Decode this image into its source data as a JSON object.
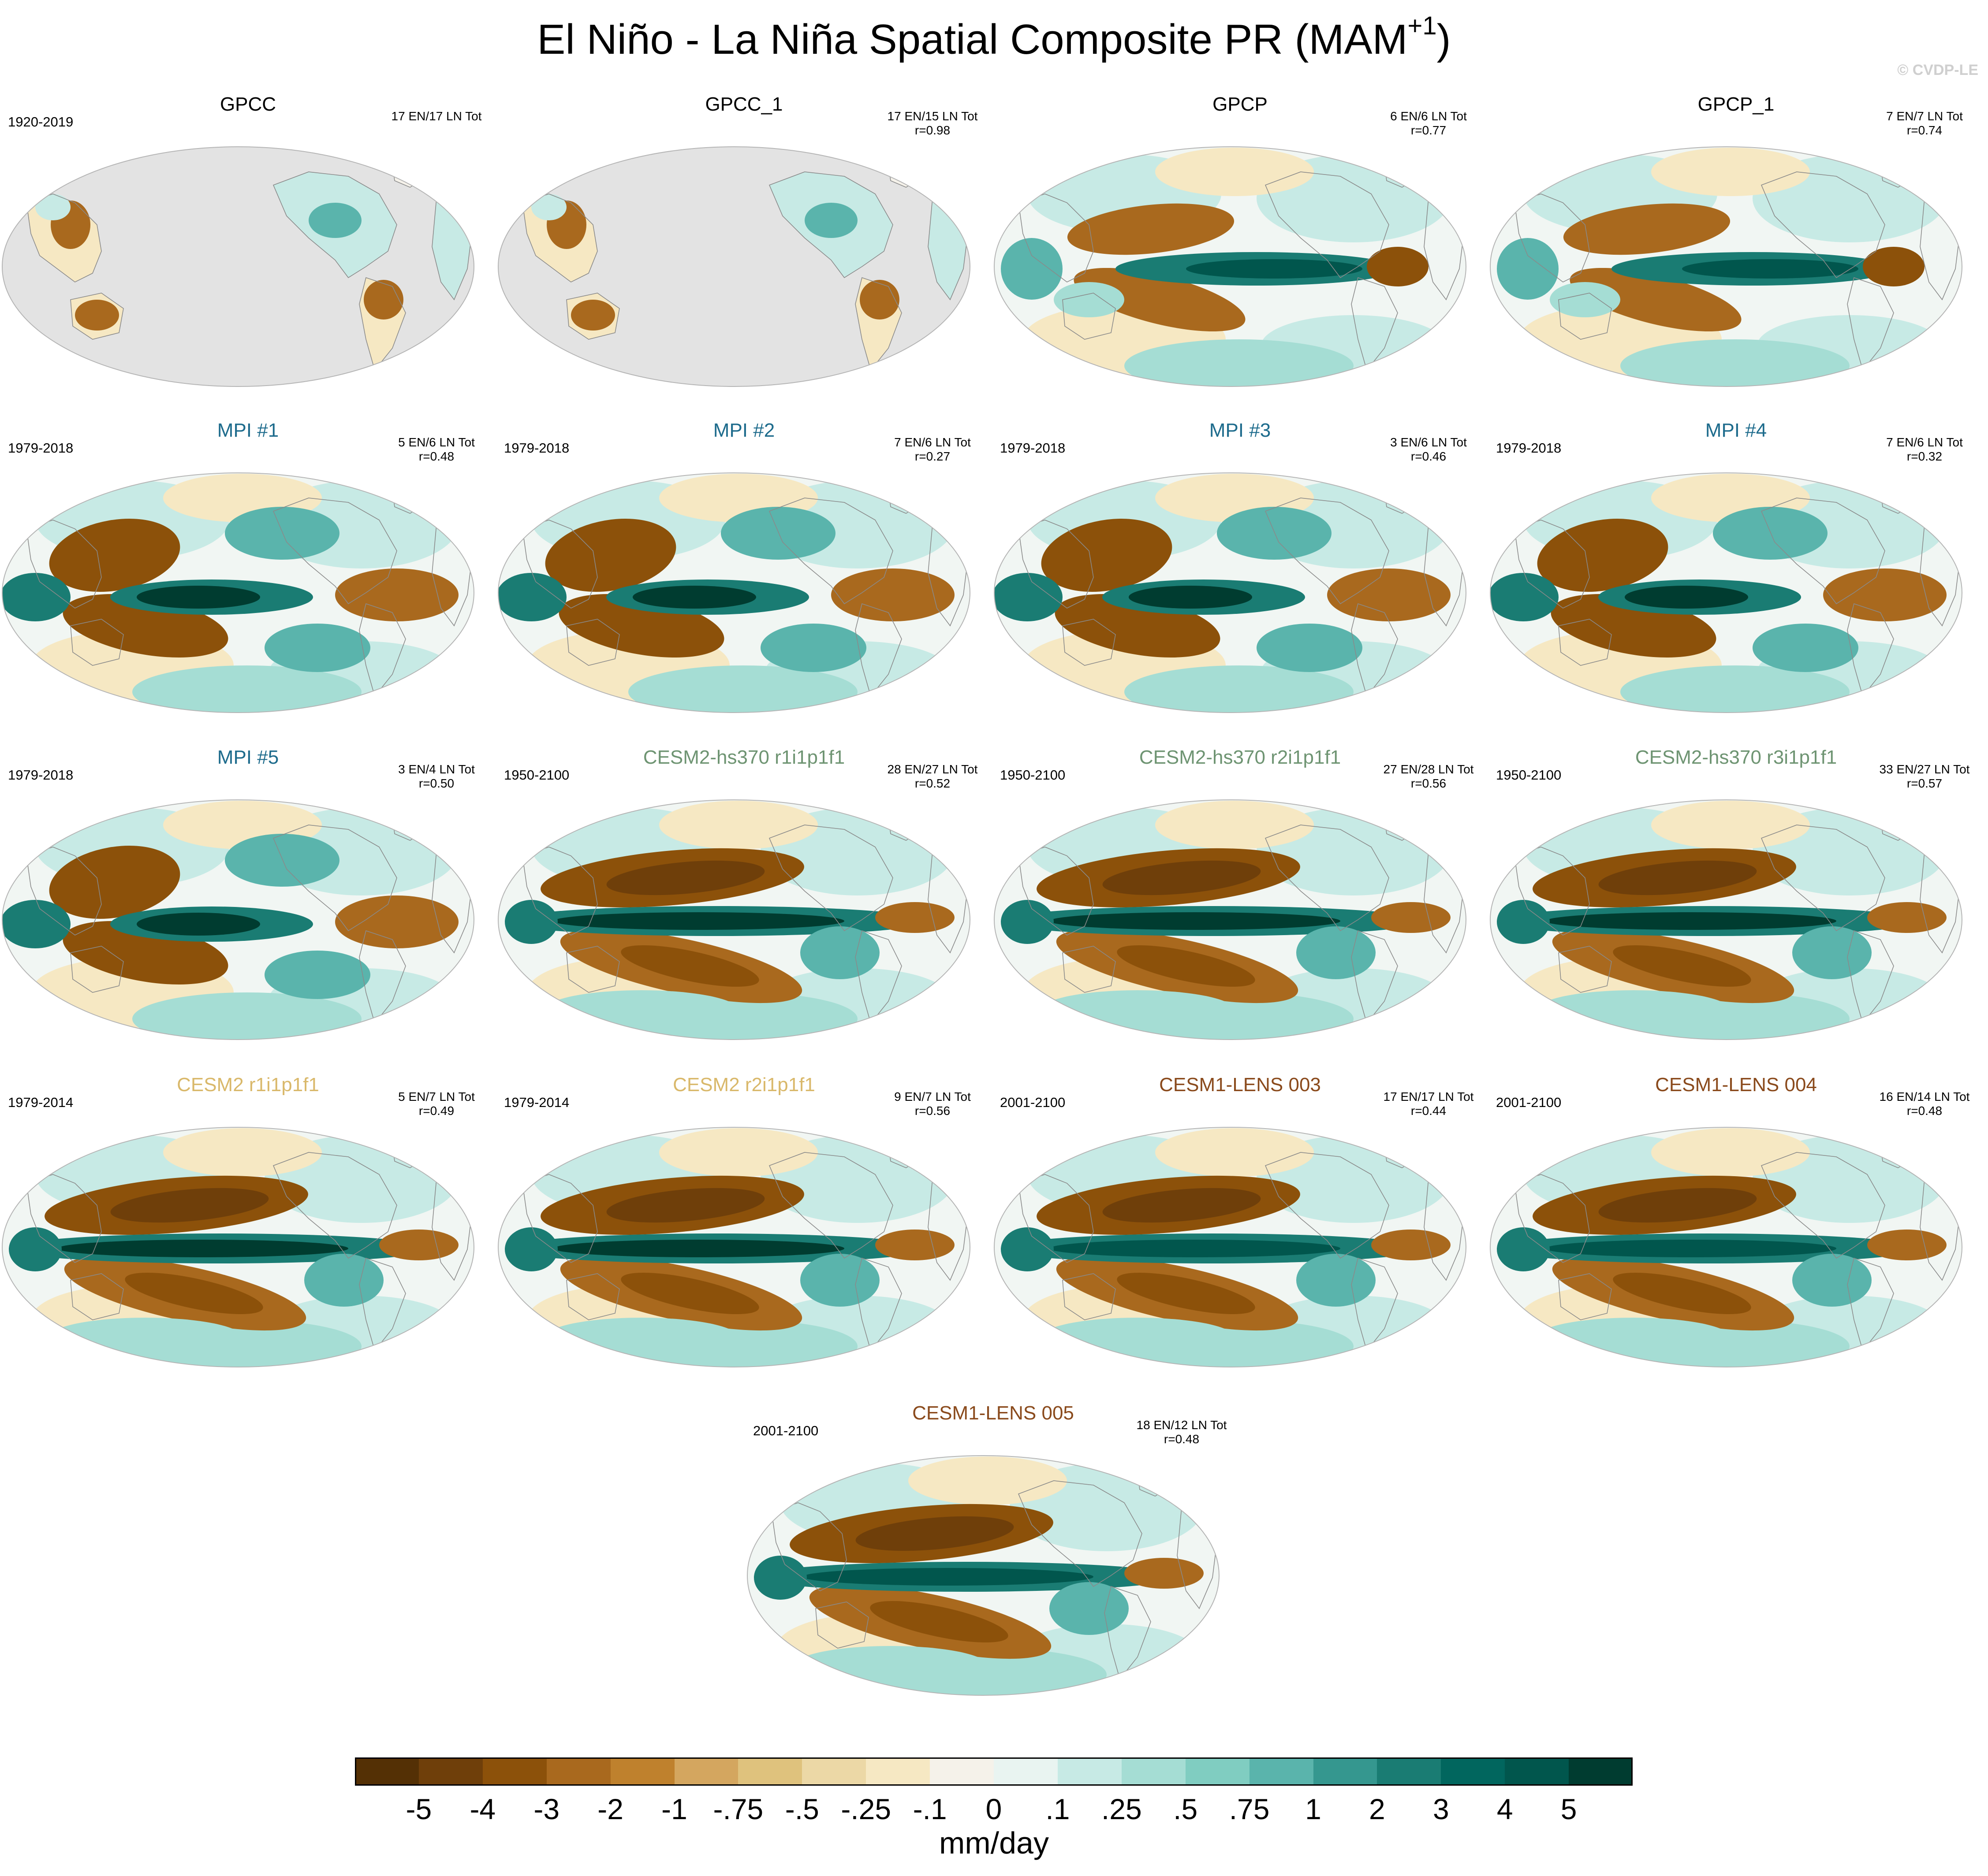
{
  "figure": {
    "title": "El Niño - La Niña Spatial Composite PR (MAM",
    "title_superscript": "+1",
    "title_suffix": ")",
    "credit": "© CVDP-LE",
    "units": "mm/day"
  },
  "colorbar": {
    "labels": [
      "-5",
      "-4",
      "-3",
      "-2",
      "-1",
      "-.75",
      "-.5",
      "-.25",
      "-.1",
      "0",
      ".1",
      ".25",
      ".5",
      ".75",
      "1",
      "2",
      "3",
      "4",
      "5"
    ],
    "colors": [
      "#543005",
      "#6f3f0a",
      "#8c510a",
      "#a9691e",
      "#bf812d",
      "#d4a65f",
      "#dfc27d",
      "#ecd8a6",
      "#f6e8c3",
      "#f5f2ea",
      "#e9f4f1",
      "#c7eae5",
      "#a5ddd4",
      "#80cdc1",
      "#5ab4ac",
      "#35978f",
      "#1a7c73",
      "#01665e",
      "#01564d",
      "#003c30"
    ]
  },
  "panels": [
    {
      "id": "gpcc",
      "title": "GPCC",
      "title_color": "#000000",
      "years": "1920-2019",
      "counts": "17 EN/17 LN Tot",
      "r": "",
      "coverage": "land",
      "style": "observed"
    },
    {
      "id": "gpcc-1",
      "title": "GPCC_1",
      "title_color": "#000000",
      "years": "",
      "counts": "17 EN/15 LN Tot",
      "r": "r=0.98",
      "coverage": "land",
      "style": "observed"
    },
    {
      "id": "gpcp",
      "title": "GPCP",
      "title_color": "#000000",
      "years": "",
      "counts": "6 EN/6 LN Tot",
      "r": "r=0.77",
      "coverage": "global",
      "style": "observed"
    },
    {
      "id": "gpcp-1",
      "title": "GPCP_1",
      "title_color": "#000000",
      "years": "",
      "counts": "7 EN/7 LN Tot",
      "r": "r=0.74",
      "coverage": "global",
      "style": "observed"
    },
    {
      "id": "mpi-1",
      "title": "MPI #1",
      "title_color": "#1d6b8c",
      "years": "1979-2018",
      "counts": "5 EN/6 LN Tot",
      "r": "r=0.48",
      "coverage": "global",
      "style": "mpi"
    },
    {
      "id": "mpi-2",
      "title": "MPI #2",
      "title_color": "#1d6b8c",
      "years": "1979-2018",
      "counts": "7 EN/6 LN Tot",
      "r": "r=0.27",
      "coverage": "global",
      "style": "mpi"
    },
    {
      "id": "mpi-3",
      "title": "MPI #3",
      "title_color": "#1d6b8c",
      "years": "1979-2018",
      "counts": "3 EN/6 LN Tot",
      "r": "r=0.46",
      "coverage": "global",
      "style": "mpi"
    },
    {
      "id": "mpi-4",
      "title": "MPI #4",
      "title_color": "#1d6b8c",
      "years": "1979-2018",
      "counts": "7 EN/6 LN Tot",
      "r": "r=0.32",
      "coverage": "global",
      "style": "mpi"
    },
    {
      "id": "mpi-5",
      "title": "MPI #5",
      "title_color": "#1d6b8c",
      "years": "1979-2018",
      "counts": "3 EN/4 LN Tot",
      "r": "r=0.50",
      "coverage": "global",
      "style": "mpi"
    },
    {
      "id": "cesm2-hs370-r1",
      "title": "CESM2-hs370 r1i1p1f1",
      "title_color": "#6e9472",
      "years": "1950-2100",
      "counts": "28 EN/27 LN Tot",
      "r": "r=0.52",
      "coverage": "global",
      "style": "model"
    },
    {
      "id": "cesm2-hs370-r2",
      "title": "CESM2-hs370 r2i1p1f1",
      "title_color": "#6e9472",
      "years": "1950-2100",
      "counts": "27 EN/28 LN Tot",
      "r": "r=0.56",
      "coverage": "global",
      "style": "model"
    },
    {
      "id": "cesm2-hs370-r3",
      "title": "CESM2-hs370 r3i1p1f1",
      "title_color": "#6e9472",
      "years": "1950-2100",
      "counts": "33 EN/27 LN Tot",
      "r": "r=0.57",
      "coverage": "global",
      "style": "model"
    },
    {
      "id": "cesm2-r1",
      "title": "CESM2 r1i1p1f1",
      "title_color": "#d9b86a",
      "years": "1979-2014",
      "counts": "5 EN/7 LN Tot",
      "r": "r=0.49",
      "coverage": "global",
      "style": "model"
    },
    {
      "id": "cesm2-r2",
      "title": "CESM2 r2i1p1f1",
      "title_color": "#d9b86a",
      "years": "1979-2014",
      "counts": "9 EN/7 LN Tot",
      "r": "r=0.56",
      "coverage": "global",
      "style": "model"
    },
    {
      "id": "cesm1-lens-003",
      "title": "CESM1-LENS 003",
      "title_color": "#8a4a1c",
      "years": "2001-2100",
      "counts": "17 EN/17 LN Tot",
      "r": "r=0.44",
      "coverage": "global",
      "style": "lens"
    },
    {
      "id": "cesm1-lens-004",
      "title": "CESM1-LENS 004",
      "title_color": "#8a4a1c",
      "years": "2001-2100",
      "counts": "16 EN/14 LN Tot",
      "r": "r=0.48",
      "coverage": "global",
      "style": "lens"
    },
    {
      "id": "cesm1-lens-005",
      "title": "CESM1-LENS 005",
      "title_color": "#8a4a1c",
      "years": "2001-2100",
      "counts": "18 EN/12 LN Tot",
      "r": "r=0.48",
      "coverage": "global",
      "style": "lens"
    }
  ]
}
